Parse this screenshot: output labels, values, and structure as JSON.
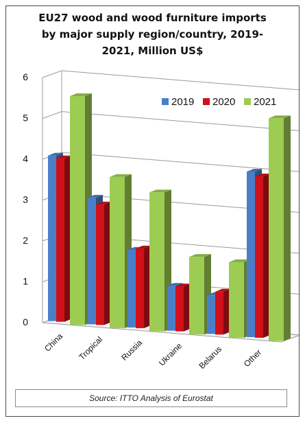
{
  "title_lines": [
    "EU27 wood and wood furniture imports",
    "by major supply region/country, 2019-",
    "2021, Million US$"
  ],
  "source": "Source: ITTO Analysis of Eurostat",
  "colors": {
    "2019": "#4a7fc8",
    "2020": "#d0101a",
    "2021": "#9ccc52"
  },
  "chart_data": {
    "type": "bar",
    "title": "EU27 wood and wood furniture imports by major supply region/country, 2019-2021, Million US$",
    "categories": [
      "China",
      "Tropical",
      "Russia",
      "Ukraine",
      "Belarus",
      "Other"
    ],
    "series": [
      {
        "name": "2019",
        "values": [
          4.05,
          3.1,
          1.9,
          1.1,
          0.95,
          4.05
        ]
      },
      {
        "name": "2020",
        "values": [
          4.0,
          2.95,
          1.95,
          1.1,
          1.05,
          3.95
        ]
      },
      {
        "name": "2021",
        "values": [
          5.6,
          3.7,
          3.4,
          1.9,
          1.85,
          5.45
        ]
      }
    ],
    "ylim": [
      0,
      6
    ],
    "yticks": [
      0,
      1,
      2,
      3,
      4,
      5,
      6
    ],
    "xlabel": "",
    "ylabel": "",
    "grid": true,
    "legend": "top-right"
  }
}
